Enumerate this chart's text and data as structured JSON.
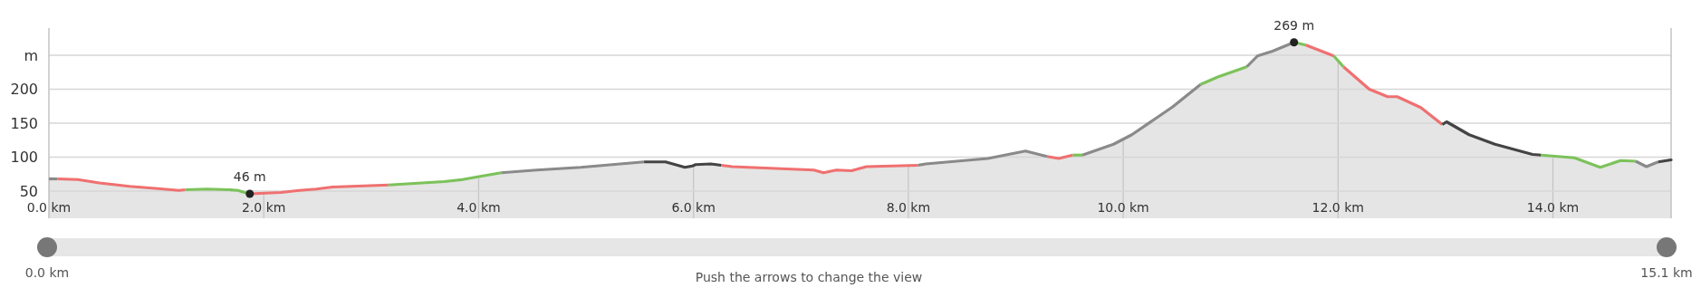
{
  "chart_data": {
    "type": "area",
    "xlim": [
      0,
      15.1
    ],
    "ylim": [
      10,
      290
    ],
    "xticks": [
      {
        "value": 0,
        "label": "0.0 km"
      },
      {
        "value": 2,
        "label": "2.0 km"
      },
      {
        "value": 4,
        "label": "4.0 km"
      },
      {
        "value": 6,
        "label": "6.0 km"
      },
      {
        "value": 8,
        "label": "8.0 km"
      },
      {
        "value": 10,
        "label": "10.0 km"
      },
      {
        "value": 12,
        "label": "12.0 km"
      },
      {
        "value": 14,
        "label": "14.0 km"
      }
    ],
    "yticks": [
      50,
      100,
      150,
      200,
      {
        "value": 250,
        "label": "m"
      }
    ],
    "grid": true,
    "series": [
      {
        "color": "#e5e5e5",
        "x": [
          0,
          0.08,
          0.27,
          0.47,
          0.75,
          0.99,
          1.21,
          1.27,
          1.47,
          1.68,
          1.76,
          1.82,
          1.87,
          2.16,
          2.33,
          2.49,
          2.64,
          3.16,
          3.68,
          3.85,
          3.99,
          4.21,
          4.54,
          4.95,
          5.54,
          5.74,
          5.92,
          5.99,
          6.02,
          6.16,
          6.26,
          6.36,
          7.12,
          7.21,
          7.33,
          7.47,
          7.61,
          8.09,
          8.16,
          8.74,
          9.09,
          9.29,
          9.4,
          9.53,
          9.62,
          9.91,
          10.08,
          10.46,
          10.72,
          10.88,
          11.15,
          11.25,
          11.39,
          11.59,
          11.7,
          11.96,
          12.05,
          12.29,
          12.46,
          12.55,
          12.77,
          12.97,
          13.01,
          13.22,
          13.46,
          13.81,
          13.89,
          14.2,
          14.44,
          14.63,
          14.77,
          14.87,
          14.98,
          15.1
        ],
        "values": [
          68,
          68,
          67,
          62,
          57,
          54,
          51,
          52,
          53,
          52,
          51,
          48,
          46,
          48,
          51,
          53,
          56,
          59,
          64,
          67,
          71,
          77,
          81,
          85,
          93,
          93,
          85,
          87,
          89,
          90,
          88,
          86,
          81,
          77,
          81,
          80,
          86,
          88,
          90,
          98,
          109,
          101,
          98,
          103,
          103,
          119,
          133,
          174,
          207,
          218,
          233,
          249,
          256,
          269,
          265,
          249,
          233,
          200,
          189,
          189,
          173,
          148,
          152,
          133,
          119,
          104,
          103,
          99,
          85,
          95,
          94,
          86,
          93,
          96
        ],
        "colors": [
          "#8a8a8a",
          "#f07070",
          "#f07070",
          "#f07070",
          "#f07070",
          "#f07070",
          "#f07070",
          "#7cc25a",
          "#7cc25a",
          "#7cc25a",
          "#7cc25a",
          "#7cc25a",
          "#f07070",
          "#f07070",
          "#f07070",
          "#f07070",
          "#f07070",
          "#7cc25a",
          "#7cc25a",
          "#7cc25a",
          "#7cc25a",
          "#8a8a8a",
          "#8a8a8a",
          "#8a8a8a",
          "#444444",
          "#444444",
          "#444444",
          "#444444",
          "#444444",
          "#444444",
          "#f07070",
          "#f07070",
          "#f07070",
          "#f07070",
          "#f07070",
          "#f07070",
          "#f07070",
          "#8a8a8a",
          "#8a8a8a",
          "#8a8a8a",
          "#8a8a8a",
          "#f07070",
          "#f07070",
          "#7cc25a",
          "#8a8a8a",
          "#8a8a8a",
          "#8a8a8a",
          "#8a8a8a",
          "#7cc25a",
          "#7cc25a",
          "#8a8a8a",
          "#8a8a8a",
          "#8a8a8a",
          "#7cc25a",
          "#f07070",
          "#7cc25a",
          "#f07070",
          "#f07070",
          "#f07070",
          "#f07070",
          "#f07070",
          "#444444",
          "#444444",
          "#444444",
          "#444444",
          "#444444",
          "#7cc25a",
          "#7cc25a",
          "#7cc25a",
          "#7cc25a",
          "#8a8a8a",
          "#8a8a8a",
          "#444444",
          "#444444"
        ]
      }
    ],
    "annotations": [
      {
        "text": "46 m",
        "x": 1.87,
        "y": 46
      },
      {
        "text": "269 m",
        "x": 11.59,
        "y": 269
      },
      "0.0 km",
      "15.1 km",
      "Push the arrows to change the view"
    ]
  }
}
